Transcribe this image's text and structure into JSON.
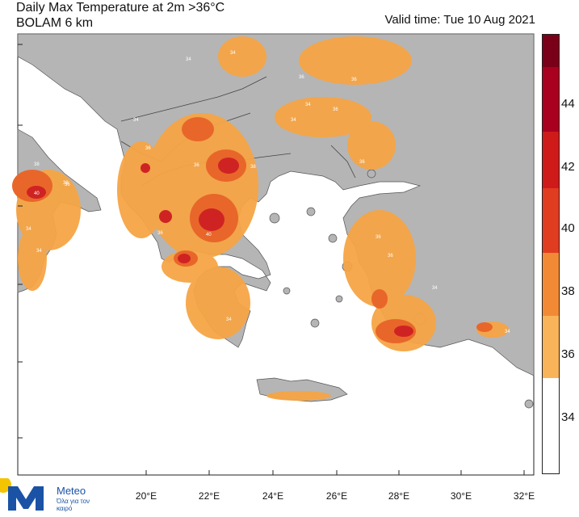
{
  "title_line1": "Daily Max Temperature at 2m >36°C",
  "title_line2": "BOLAM 6 km",
  "valid_time": "Valid time: Tue 10 Aug 2021",
  "lon_labels": [
    "20°E",
    "22°E",
    "24°E",
    "26°E",
    "28°E",
    "30°E",
    "32°E"
  ],
  "colorbar": {
    "labels": [
      "44",
      "42",
      "40",
      "38",
      "36",
      "34"
    ],
    "colors": [
      "#7a0019",
      "#a8001e",
      "#d01f1f",
      "#e64a1a",
      "#f6a03b",
      "#f9b850",
      "#ffffff"
    ]
  },
  "contour_labels": [
    "34",
    "36",
    "34",
    "36",
    "34",
    "36",
    "34",
    "36",
    "38",
    "36",
    "34",
    "36",
    "40",
    "40",
    "34",
    "36",
    "38",
    "34",
    "36",
    "34",
    "36",
    "34",
    "34",
    "38",
    "36"
  ],
  "logo": {
    "name": "Meteo",
    "tagline": "Όλα για τον καιρό",
    "icon": "meteo-logo-icon"
  },
  "colors": {
    "land": "#b5b5b5",
    "sea": "#ffffff",
    "orange": "#f6a545",
    "dark_orange": "#e8662a",
    "red": "#cf2323"
  }
}
